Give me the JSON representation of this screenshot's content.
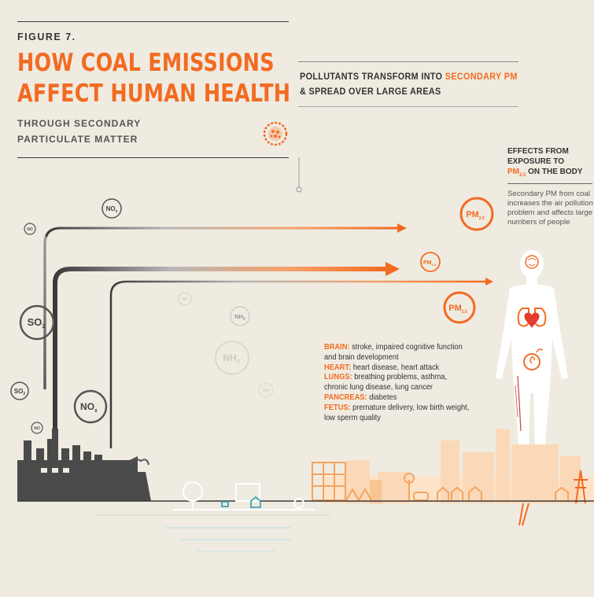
{
  "header": {
    "figure_label": "FIGURE 7.",
    "title_line1": "HOW COAL EMISSIONS",
    "title_line2": "AFFECT HUMAN HEALTH",
    "subtitle_line1": "THROUGH SECONDARY",
    "subtitle_line2": "PARTICULATE MATTER"
  },
  "transform_heading": {
    "part1": "POLLUTANTS TRANSFORM INTO ",
    "highlight": "SECONDARY PM",
    "line2": "& SPREAD OVER LARGE AREAS"
  },
  "effects": {
    "title_line1": "EFFECTS FROM",
    "title_line2": "EXPOSURE TO",
    "pm_base": "PM",
    "pm_sub": "2.5",
    "title_tail": " ON THE BODY",
    "description": "Secondary PM from coal increases the air pollution problem and affects large numbers of people"
  },
  "health_effects": [
    {
      "organ": "BRAIN:",
      "text": " stroke, impaired cognitive function",
      "continuation": "and brain development"
    },
    {
      "organ": "HEART:",
      "text": " heart disease, heart attack",
      "continuation": ""
    },
    {
      "organ": "LUNGS:",
      "text": " breathing problems, asthma,",
      "continuation": "chronic lung disease, lung cancer"
    },
    {
      "organ": "PANCREAS:",
      "text": " diabetes",
      "continuation": ""
    },
    {
      "organ": "FETUS:",
      "text": " premature delivery, low birth weight,",
      "continuation": "low sperm quality"
    }
  ],
  "molecules": {
    "no": "NO",
    "no_sub": "x",
    "so": "SO",
    "so_sub": "2",
    "nh": "NH",
    "nh_sub": "3",
    "pm": "PM",
    "pm_sub": "2.5"
  },
  "colors": {
    "accent": "#f26b21",
    "dark": "#3a3a3a",
    "background": "#efebe1",
    "light_orange": "#fbd2a8"
  }
}
